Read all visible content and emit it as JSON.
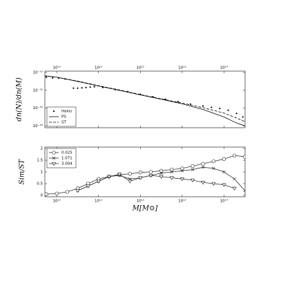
{
  "chart_data": [
    {
      "type": "line",
      "xscale": "log",
      "yscale": "log",
      "ylabel": "dn(N)/dn(M)",
      "xaxis_position": "top",
      "legend": "lower left",
      "xlim": [
        5200000000.0,
        320000000000000.0
      ],
      "ylim": [
        3e-26,
        2.5e-10
      ],
      "xticks": [
        {
          "value": 10000000000.0,
          "label": "10¹⁰"
        },
        {
          "value": 100000000000.0,
          "label": "10¹¹"
        },
        {
          "value": 1000000000000.0,
          "label": "10¹²"
        },
        {
          "value": 10000000000000.0,
          "label": "10¹³"
        },
        {
          "value": 100000000000000.0,
          "label": "10¹⁴"
        }
      ],
      "yticks": [
        {
          "value": 1e-10,
          "label": "10⁻¹⁰"
        },
        {
          "value": 1e-15,
          "label": "10⁻¹⁵"
        },
        {
          "value": 1e-20,
          "label": "10⁻²⁰"
        },
        {
          "value": 1e-25,
          "label": "10⁻²⁵"
        }
      ],
      "series": [
        {
          "name": "Halos",
          "color": "#000000",
          "line": "none",
          "marker": "dot",
          "x": [
            5620000000.0,
            7940000000.0,
            11200000000.0,
            15800000000.0,
            25100000000.0,
            31600000000.0,
            39800000000.0,
            50100000000.0,
            63100000000.0,
            79400000000.0,
            126000000000.0,
            251000000000.0,
            501000000000.0,
            1000000000000.0,
            2000000000000.0,
            3980000000000.0,
            7940000000000.0,
            15800000000000.0,
            31600000000000.0,
            50100000000000.0,
            79400000000000.0,
            126000000000000.0,
            200000000000000.0,
            282000000000000.0
          ],
          "values": [
            5.01e-12,
            3.16e-12,
            2.51e-12,
            1.58e-12,
            3.98e-15,
            3.98e-15,
            5.01e-15,
            6.31e-15,
            7.94e-15,
            1e-14,
            6.31e-15,
            1.58e-15,
            3.98e-16,
            7.94e-17,
            1.58e-17,
            3.16e-18,
            6.31e-19,
            1.26e-19,
            3.98e-20,
            1.58e-20,
            7.94e-21,
            2.51e-21,
            3.16e-22,
            3.16e-23
          ]
        },
        {
          "name": "PS",
          "color": "#000000",
          "line": "solid",
          "marker": "none",
          "x": [
            5010000000.0,
            10000000000.0,
            31600000000.0,
            100000000000.0,
            316000000000.0,
            1000000000000.0,
            3160000000000.0,
            10000000000000.0,
            31600000000000.0,
            100000000000000.0,
            200000000000000.0,
            316000000000000.0
          ],
          "values": [
            1.26e-11,
            5.01e-12,
            3.16e-13,
            1.58e-14,
            1e-15,
            5.01e-17,
            3.16e-18,
            1.58e-19,
            3.98e-21,
            3.16e-23,
            6.31e-25,
            1e-25
          ]
        },
        {
          "name": "ST",
          "color": "#000000",
          "line": "dashed",
          "marker": "none",
          "x": [
            5010000000.0,
            10000000000.0,
            31600000000.0,
            100000000000.0,
            316000000000.0,
            1000000000000.0,
            3160000000000.0,
            10000000000000.0,
            31600000000000.0,
            100000000000000.0,
            200000000000000.0,
            316000000000000.0
          ],
          "values": [
            1.26e-11,
            5.01e-12,
            3.98e-13,
            2e-14,
            1.26e-15,
            6.31e-17,
            3.98e-18,
            2.51e-19,
            1.26e-20,
            3.98e-22,
            1.58e-23,
            1.58e-24
          ]
        }
      ]
    },
    {
      "type": "line",
      "xscale": "log",
      "yscale": "linear",
      "ylabel": "Sim/ST",
      "xlabel": "M[M⊙]",
      "xaxis_position": "bottom",
      "legend": "upper left",
      "xlim": [
        5200000000.0,
        320000000000000.0
      ],
      "ylim": [
        -0.06,
        2.06
      ],
      "xticks": [
        {
          "value": 10000000000.0,
          "label": "10¹⁰"
        },
        {
          "value": 100000000000.0,
          "label": "10¹¹"
        },
        {
          "value": 1000000000000.0,
          "label": "10¹²"
        },
        {
          "value": 10000000000000.0,
          "label": "10¹³"
        },
        {
          "value": 100000000000000.0,
          "label": "10¹⁴"
        }
      ],
      "yticks": [
        0,
        0.5,
        1,
        1.5,
        2
      ],
      "x": [
        5620000000.0,
        10000000000.0,
        17800000000.0,
        31600000000.0,
        56200000000.0,
        100000000000.0,
        178000000000.0,
        316000000000.0,
        562000000000.0,
        1000000000000.0,
        1780000000000.0,
        3160000000000.0,
        5620000000000.0,
        10000000000000.0,
        17800000000000.0,
        31600000000000.0,
        56200000000000.0,
        100000000000000.0,
        178000000000000.0,
        316000000000000.0
      ],
      "series": [
        {
          "name": "0.025",
          "color": "#333333",
          "line": "solid",
          "marker": "circle",
          "values": [
            0.05,
            0.08,
            0.15,
            0.3,
            0.5,
            0.7,
            0.8,
            0.88,
            0.92,
            0.98,
            1.0,
            1.05,
            1.1,
            1.15,
            1.25,
            1.35,
            1.45,
            1.55,
            1.7,
            1.65
          ]
        },
        {
          "name": "1.071",
          "color": "#333333",
          "line": "solid",
          "marker": "x",
          "values": [
            null,
            null,
            null,
            0.2,
            0.4,
            0.6,
            0.8,
            0.85,
            0.7,
            0.75,
            0.85,
            0.95,
            1.0,
            1.05,
            1.1,
            1.2,
            1.15,
            1.0,
            0.7,
            0.2
          ]
        },
        {
          "name": "3.004",
          "color": "#333333",
          "line": "solid",
          "marker": "triangle-down",
          "values": [
            null,
            null,
            null,
            0.2,
            0.4,
            0.6,
            0.8,
            0.9,
            0.6,
            0.75,
            0.85,
            0.8,
            0.75,
            0.7,
            0.65,
            0.55,
            0.5,
            0.45,
            0.3,
            null
          ]
        }
      ]
    }
  ]
}
